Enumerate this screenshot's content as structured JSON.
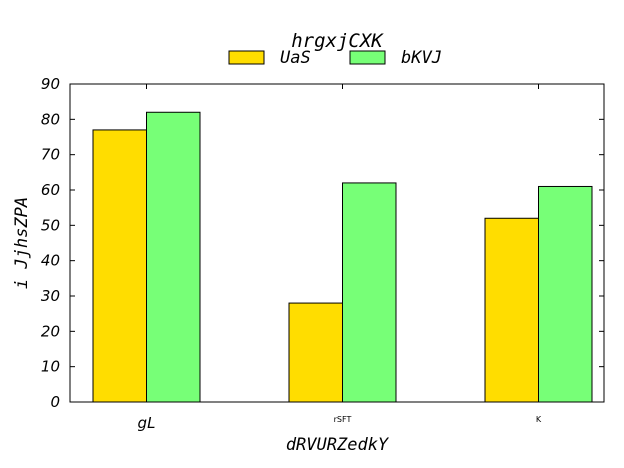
{
  "chart_data": {
    "type": "bar",
    "title": "hrgxjCXK",
    "xlabel": "dRVURZedkY",
    "ylabel": "i JjhsZPA",
    "categories": [
      "gL",
      "rSFT",
      "K"
    ],
    "series": [
      {
        "name": "UaS",
        "values": [
          77,
          28,
          52
        ],
        "color": "#ffdd00"
      },
      {
        "name": "bKVJ",
        "values": [
          82,
          62,
          61
        ],
        "color": "#77ff77"
      }
    ],
    "ylim": [
      0,
      90
    ],
    "yticks": [
      0,
      10,
      20,
      30,
      40,
      50,
      60,
      70,
      80,
      90
    ],
    "grid": false,
    "legend_position": "top-center"
  }
}
